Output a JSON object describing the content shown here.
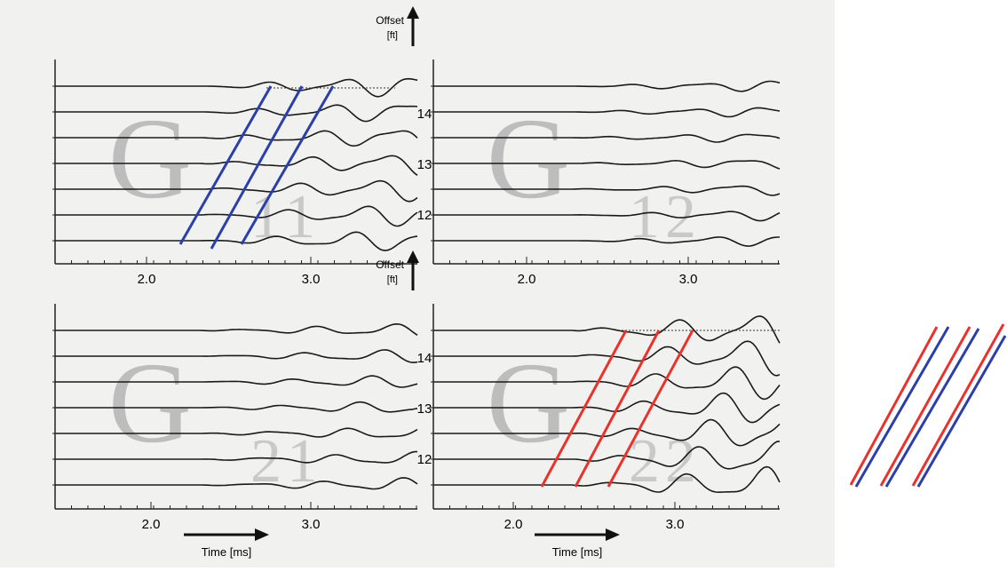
{
  "panels": [
    {
      "letter": "G",
      "subscript": "11",
      "x_ticks": [
        "2.0",
        "3.0"
      ],
      "y_ticks": [
        "14",
        "13",
        "12"
      ],
      "offset_label": "Offset",
      "offset_unit": "[ft]"
    },
    {
      "letter": "G",
      "subscript": "12",
      "x_ticks": [
        "2.0",
        "3.0"
      ]
    },
    {
      "letter": "G",
      "subscript": "21",
      "x_ticks": [
        "2.0",
        "3.0"
      ],
      "y_ticks": [
        "14",
        "13",
        "12"
      ],
      "offset_label": "Offset",
      "offset_unit": "[ft]",
      "time_label": "Time [ms]"
    },
    {
      "letter": "G",
      "subscript": "22",
      "x_ticks": [
        "2.0",
        "3.0"
      ],
      "time_label": "Time [ms]"
    }
  ]
}
